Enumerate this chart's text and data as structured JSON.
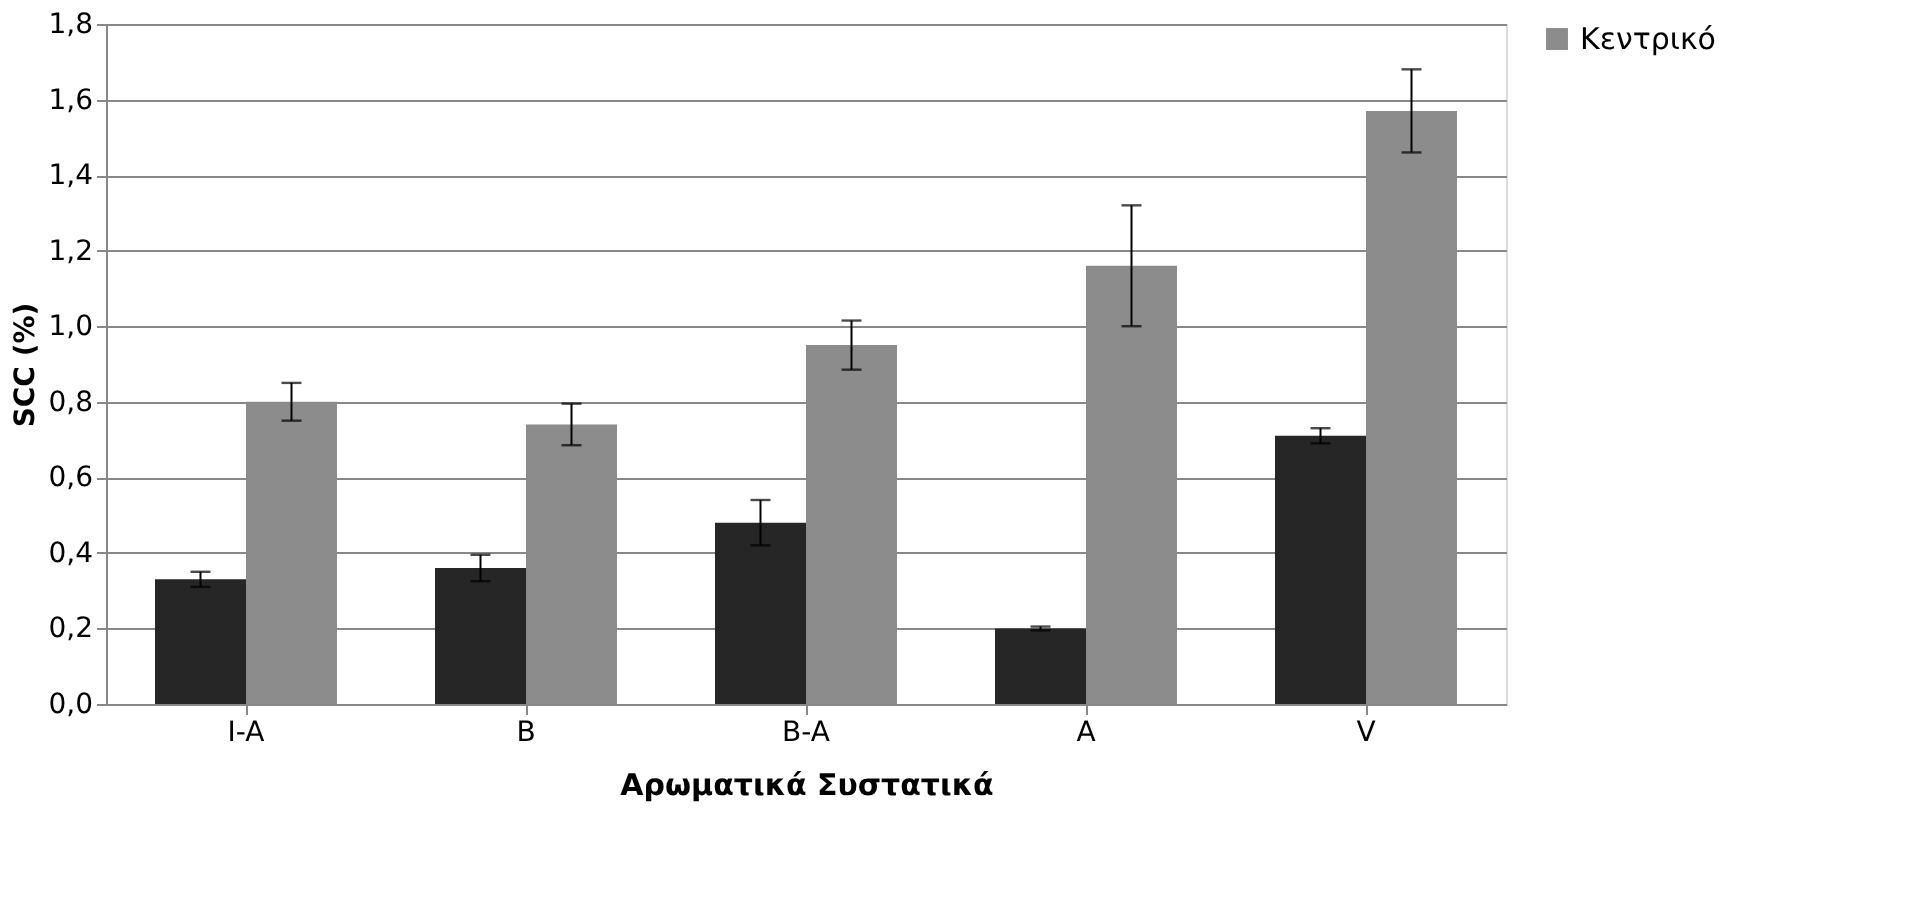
{
  "chart_data": {
    "type": "bar",
    "xlabel": "Αρωματικά Συστατικά",
    "ylabel": "SCC (%)",
    "categories": [
      "I-A",
      "B",
      "B-A",
      "A",
      "V"
    ],
    "series": [
      {
        "color": "#262626",
        "values": [
          0.33,
          0.36,
          0.48,
          0.2,
          0.71
        ],
        "errors": [
          0.02,
          0.035,
          0.06,
          0.005,
          0.02
        ]
      },
      {
        "name": "Κεντρικό",
        "color": "#8c8c8c",
        "values": [
          0.8,
          0.74,
          0.95,
          1.16,
          1.57
        ],
        "errors": [
          0.05,
          0.055,
          0.065,
          0.16,
          0.11
        ]
      }
    ],
    "ylim": [
      0,
      1.8
    ],
    "yticks": [
      {
        "value": 0,
        "label": "0,0"
      },
      {
        "value": 0.2,
        "label": "0,2"
      },
      {
        "value": 0.4,
        "label": "0,4"
      },
      {
        "value": 0.6,
        "label": "0,6"
      },
      {
        "value": 0.8,
        "label": "0,8"
      },
      {
        "value": 1.0,
        "label": "1,0"
      },
      {
        "value": 1.2,
        "label": "1,2"
      },
      {
        "value": 1.4,
        "label": "1,4"
      },
      {
        "value": 1.6,
        "label": "1,6"
      },
      {
        "value": 1.8,
        "label": "1,8"
      }
    ],
    "grid": "y",
    "legend": "top right"
  }
}
